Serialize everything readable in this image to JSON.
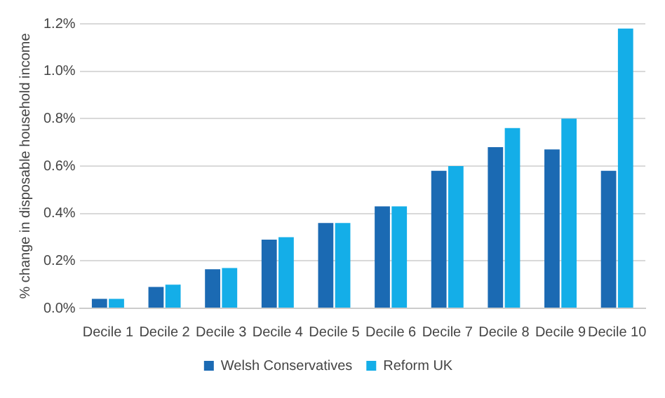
{
  "chart_data": {
    "type": "bar",
    "ylabel": "% change in disposable household income",
    "categories": [
      "Decile 1",
      "Decile 2",
      "Decile 3",
      "Decile 4",
      "Decile 5",
      "Decile 6",
      "Decile 7",
      "Decile 8",
      "Decile 9",
      "Decile 10"
    ],
    "series": [
      {
        "name": "Welsh Conservatives",
        "color": "#1b6ab3",
        "values": [
          0.04,
          0.09,
          0.165,
          0.29,
          0.36,
          0.43,
          0.58,
          0.68,
          0.67,
          0.58
        ]
      },
      {
        "name": "Reform UK",
        "color": "#14aee8",
        "values": [
          0.04,
          0.1,
          0.17,
          0.3,
          0.36,
          0.43,
          0.6,
          0.76,
          0.8,
          1.18
        ]
      }
    ],
    "ylim": [
      0,
      1.2
    ],
    "yticks": [
      {
        "value": 0,
        "label": "0.0%"
      },
      {
        "value": 0.2,
        "label": "0.2%"
      },
      {
        "value": 0.4,
        "label": "0.4%"
      },
      {
        "value": 0.6,
        "label": "0.6%"
      },
      {
        "value": 0.8,
        "label": "0.8%"
      },
      {
        "value": 1,
        "label": "1.0%"
      },
      {
        "value": 1.2,
        "label": "1.2%"
      }
    ],
    "grid": "y",
    "legend": "bottom"
  }
}
